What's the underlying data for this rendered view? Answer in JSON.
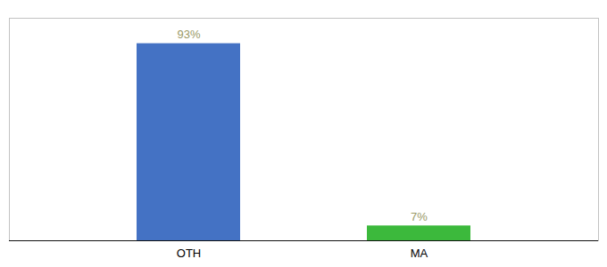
{
  "chart_data": {
    "type": "bar",
    "categories": [
      "OTH",
      "MA"
    ],
    "values": [
      93,
      7
    ],
    "value_labels": [
      "93%",
      "7%"
    ],
    "colors": [
      "#4472c4",
      "#3cb93c"
    ],
    "ylim": [
      0,
      105
    ],
    "data_labels": true,
    "tick_labels": "x"
  }
}
